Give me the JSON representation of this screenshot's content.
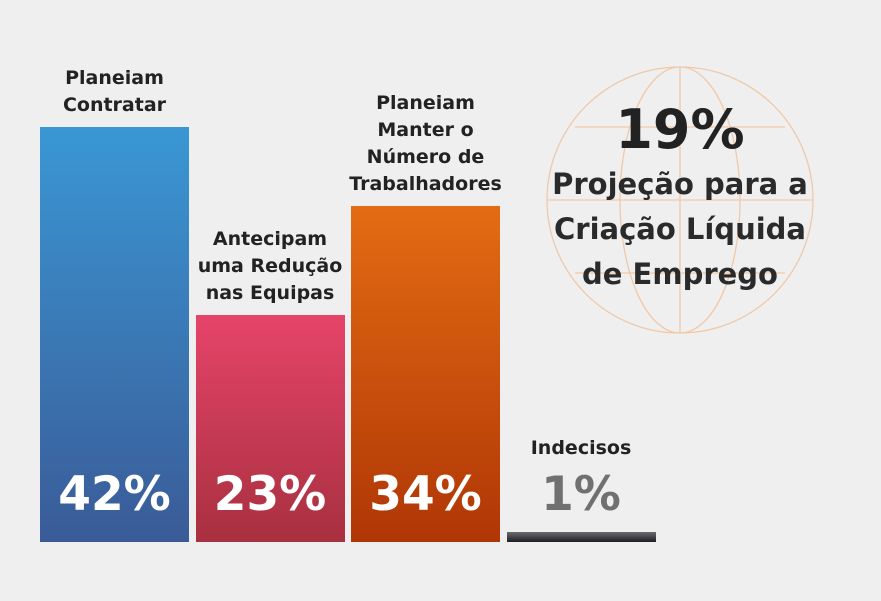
{
  "chart_data": {
    "type": "bar",
    "categories": [
      "Planeiam Contratar",
      "Antecipam uma Redução nas Equipas",
      "Planeiam Manter o Número de Trabalhadores",
      "Indecisos"
    ],
    "values": [
      42,
      23,
      34,
      1
    ],
    "value_labels": [
      "42%",
      "23%",
      "34%",
      "1%"
    ],
    "colors": [
      [
        "#3a97d4",
        "#3a5b97"
      ],
      [
        "#e6446a",
        "#a8303f"
      ],
      [
        "#e36c13",
        "#b03606"
      ],
      [
        "#6a6a70",
        "#1e1e24"
      ]
    ],
    "annotations": [
      "19%",
      "Projeção para a Criação Líquida de Emprego"
    ]
  }
}
